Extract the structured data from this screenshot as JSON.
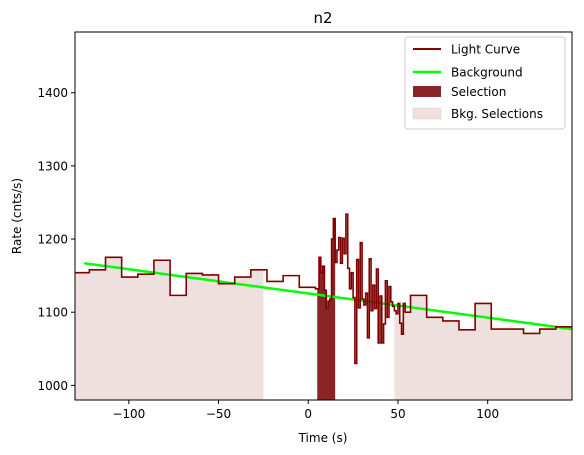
{
  "chart_data": {
    "type": "line",
    "title": "n2",
    "xlabel": "Time (s)",
    "ylabel": "Rate (cnts/s)",
    "xlim": [
      -130,
      147
    ],
    "ylim": [
      980,
      1483
    ],
    "xticks": [
      -100,
      -50,
      0,
      50,
      100
    ],
    "xtick_labels": [
      "−100",
      "−50",
      "0",
      "50",
      "100"
    ],
    "yticks": [
      1000,
      1100,
      1200,
      1300,
      1400
    ],
    "ytick_labels": [
      "1000",
      "1100",
      "1200",
      "1300",
      "1400"
    ],
    "grid": false,
    "legend": {
      "placement": "top-right",
      "entries": [
        {
          "label": "Light Curve",
          "kind": "line",
          "color": "#8b0000"
        },
        {
          "label": "Background",
          "kind": "line",
          "color": "#00ff00"
        },
        {
          "label": "Selection",
          "kind": "patch",
          "color": "#8b2525"
        },
        {
          "label": "Bkg. Selections",
          "kind": "patch",
          "color": "#efe0e0"
        }
      ]
    },
    "colors": {
      "light_curve": "#800000",
      "background": "#00ff00",
      "selection": "#8b2525",
      "bkg_selection": "#efe0e0"
    },
    "light_curve": {
      "name": "Light Curve",
      "edges": [
        -130,
        -122,
        -113,
        -104,
        -95,
        -86,
        -77,
        -68,
        -59,
        -50,
        -41,
        -32,
        -23,
        -14,
        -5,
        4,
        6,
        7,
        8,
        9,
        10,
        11,
        12,
        13,
        14,
        15,
        16,
        17,
        18,
        19,
        20,
        21,
        22,
        23,
        24,
        25,
        26,
        27,
        28,
        29,
        30,
        31,
        32,
        33,
        34,
        35,
        36,
        37,
        38,
        39,
        40,
        41,
        42,
        43,
        44,
        45,
        46,
        47,
        48,
        49,
        50,
        51,
        52,
        53,
        54,
        57,
        66,
        75,
        84,
        93,
        102,
        111,
        120,
        129,
        138,
        147
      ],
      "values": [
        1154,
        1158,
        1175,
        1148,
        1152,
        1171,
        1123,
        1153,
        1151,
        1139,
        1148,
        1158,
        1142,
        1150,
        1134,
        1132,
        1175,
        1154,
        1163,
        1130,
        1105,
        1115,
        1118,
        1200,
        1228,
        1168,
        1185,
        1202,
        1167,
        1201,
        1180,
        1234,
        1160,
        1132,
        1154,
        1120,
        1030,
        1172,
        1106,
        1195,
        1118,
        1110,
        1126,
        1065,
        1173,
        1102,
        1137,
        1105,
        1159,
        1058,
        1122,
        1058,
        1084,
        1143,
        1093,
        1135,
        1114,
        1108,
        1102,
        1098,
        1112,
        1085,
        1070,
        1112,
        1100,
        1123,
        1093,
        1088,
        1076,
        1112,
        1077,
        1077,
        1071,
        1077,
        1080
      ]
    },
    "background": {
      "name": "Background",
      "x": [
        -125,
        147
      ],
      "y": [
        1167,
        1077
      ]
    },
    "selection": {
      "name": "Selection",
      "x_range": [
        5,
        15
      ]
    },
    "bkg_selections": [
      {
        "name": "Bkg. Selections",
        "x_range": [
          -130,
          -25
        ]
      },
      {
        "name": "Bkg. Selections",
        "x_range": [
          48,
          147
        ]
      }
    ]
  }
}
